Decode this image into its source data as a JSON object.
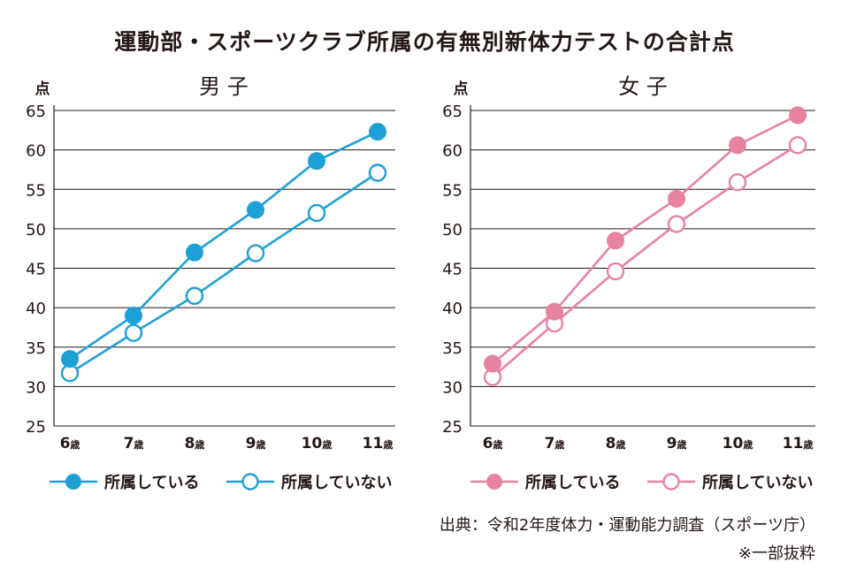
{
  "title": "運動部・スポーツクラブ所属の有無別新体力テストの合計点",
  "source": "出典：令和2年度体力・運動能力調査（スポーツ庁）",
  "excerpt_note": "※一部抜粋",
  "colors": {
    "boys": "#1ea0d7",
    "girls": "#e8839f",
    "grid": "#231815"
  },
  "chart_data": [
    {
      "type": "line",
      "title": "男 子",
      "ylabel": "点",
      "ylim": [
        25,
        65
      ],
      "yticks": [
        25,
        30,
        35,
        40,
        45,
        50,
        55,
        60,
        65
      ],
      "age_nums": [
        "6",
        "7",
        "8",
        "9",
        "10",
        "11"
      ],
      "age_unit": "歳",
      "grid": true,
      "legend_position": "bottom",
      "series": [
        {
          "name": "所属している",
          "marker": "filled",
          "values": [
            33.5,
            39.0,
            47.0,
            52.4,
            58.6,
            62.3
          ]
        },
        {
          "name": "所属していない",
          "marker": "open",
          "values": [
            31.7,
            36.8,
            41.5,
            46.9,
            52.0,
            57.1
          ]
        }
      ]
    },
    {
      "type": "line",
      "title": "女 子",
      "ylabel": "点",
      "ylim": [
        25,
        65
      ],
      "yticks": [
        25,
        30,
        35,
        40,
        45,
        50,
        55,
        60,
        65
      ],
      "age_nums": [
        "6",
        "7",
        "8",
        "9",
        "10",
        "11"
      ],
      "age_unit": "歳",
      "grid": true,
      "legend_position": "bottom",
      "series": [
        {
          "name": "所属している",
          "marker": "filled",
          "values": [
            32.9,
            39.5,
            48.5,
            53.8,
            60.6,
            64.4
          ]
        },
        {
          "name": "所属していない",
          "marker": "open",
          "values": [
            31.2,
            38.0,
            44.6,
            50.6,
            55.9,
            60.6
          ]
        }
      ]
    }
  ]
}
